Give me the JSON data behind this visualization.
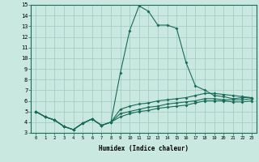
{
  "xlabel": "Humidex (Indice chaleur)",
  "ylabel": "",
  "background_color": "#c8e8e0",
  "grid_color": "#a0c8c0",
  "line_color": "#1a6b5a",
  "xlim": [
    -0.5,
    23.5
  ],
  "ylim": [
    3,
    15
  ],
  "xticks": [
    0,
    1,
    2,
    3,
    4,
    5,
    6,
    7,
    8,
    9,
    10,
    11,
    12,
    13,
    14,
    15,
    16,
    17,
    18,
    19,
    20,
    21,
    22,
    23
  ],
  "yticks": [
    3,
    4,
    5,
    6,
    7,
    8,
    9,
    10,
    11,
    12,
    13,
    14,
    15
  ],
  "series": [
    [
      5.0,
      4.5,
      4.2,
      3.6,
      3.3,
      3.9,
      4.3,
      3.7,
      4.0,
      8.6,
      12.6,
      14.9,
      14.4,
      13.1,
      13.1,
      12.8,
      9.6,
      7.4,
      7.0,
      6.5,
      6.4,
      6.2,
      6.3,
      6.3
    ],
    [
      5.0,
      4.5,
      4.2,
      3.6,
      3.3,
      3.9,
      4.3,
      3.7,
      4.0,
      5.2,
      5.5,
      5.7,
      5.8,
      6.0,
      6.1,
      6.2,
      6.3,
      6.5,
      6.7,
      6.7,
      6.6,
      6.5,
      6.4,
      6.3
    ],
    [
      5.0,
      4.5,
      4.2,
      3.6,
      3.3,
      3.9,
      4.3,
      3.7,
      4.0,
      4.8,
      5.0,
      5.2,
      5.4,
      5.5,
      5.7,
      5.8,
      5.9,
      6.0,
      6.2,
      6.2,
      6.1,
      6.1,
      6.1,
      6.2
    ],
    [
      5.0,
      4.5,
      4.2,
      3.6,
      3.3,
      3.9,
      4.3,
      3.7,
      4.0,
      4.5,
      4.8,
      5.0,
      5.1,
      5.3,
      5.4,
      5.5,
      5.6,
      5.8,
      6.0,
      6.0,
      6.0,
      5.9,
      5.9,
      6.0
    ]
  ]
}
